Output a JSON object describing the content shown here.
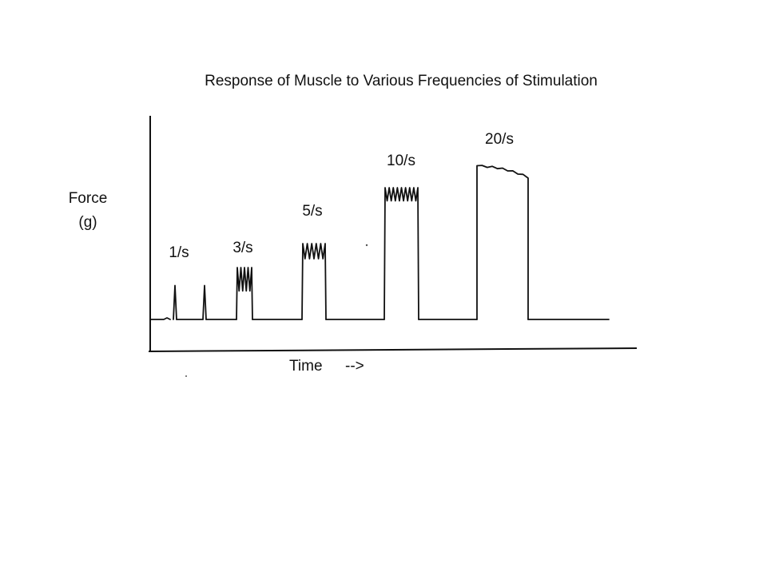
{
  "chart_data": {
    "type": "line",
    "title": "Response of Muscle to Various Frequencies of Stimulation",
    "ylabel_line1": "Force",
    "ylabel_line2": "(g)",
    "xlabel": "Time",
    "xlabel_arrow": "-->",
    "baseline_force": 0,
    "series": [
      {
        "label": "1/s",
        "frequency_per_s": 1,
        "twitch_count": 2,
        "peak_force": 0.17,
        "pattern": "separate twitches"
      },
      {
        "label": "3/s",
        "frequency_per_s": 3,
        "twitch_count": 4,
        "peak_force": 0.26,
        "pattern": "summation"
      },
      {
        "label": "5/s",
        "frequency_per_s": 5,
        "twitch_count": 5,
        "peak_force": 0.38,
        "pattern": "incomplete tetanus"
      },
      {
        "label": "10/s",
        "frequency_per_s": 10,
        "twitch_count": 8,
        "peak_force": 0.66,
        "pattern": "incomplete tetanus"
      },
      {
        "label": "20/s",
        "frequency_per_s": 20,
        "twitch_count": 10,
        "peak_force": 0.77,
        "pattern": "complete tetanus"
      }
    ],
    "grid": false,
    "legend": "none"
  }
}
